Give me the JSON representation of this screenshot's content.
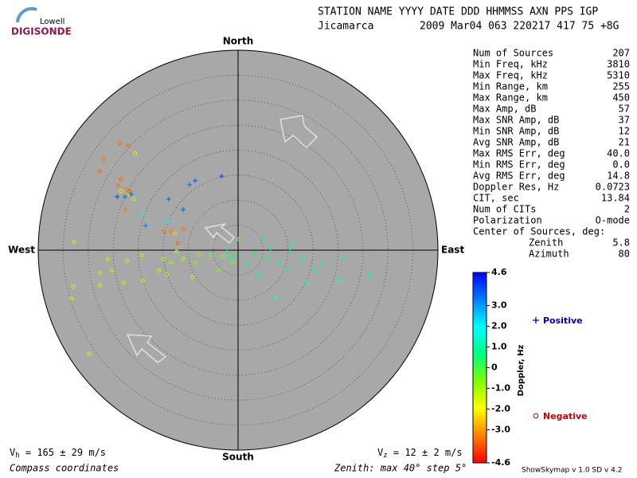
{
  "header": {
    "logo_top": "Lowell",
    "logo_bottom": "DIGISONDE",
    "columns": "STATION NAME    YYYY DATE  DDD HHMMSS AXN PPS IGP",
    "station": "Jicamarca",
    "values": "2009 Mar04 063 220217 417  75 +8G"
  },
  "stats": [
    {
      "label": "Num of Sources",
      "value": "207"
    },
    {
      "label": "Min Freq, kHz",
      "value": "3810"
    },
    {
      "label": "Max Freq, kHz",
      "value": "5310"
    },
    {
      "label": "Min Range, km",
      "value": "255"
    },
    {
      "label": "Max Range, km",
      "value": "450"
    },
    {
      "label": "Max Amp, dB",
      "value": "57"
    },
    {
      "label": "Max SNR Amp, dB",
      "value": "37"
    },
    {
      "label": "Min SNR Amp, dB",
      "value": "12"
    },
    {
      "label": "Avg SNR Amp, dB",
      "value": "21"
    },
    {
      "label": "Max RMS Err, deg",
      "value": "40.0"
    },
    {
      "label": "Min RMS Err, deg",
      "value": "0.0"
    },
    {
      "label": "Avg RMS Err, deg",
      "value": "14.8"
    },
    {
      "label": "Doppler Res, Hz",
      "value": "0.0723"
    },
    {
      "label": "CIT, sec",
      "value": "13.84"
    },
    {
      "label": "Num of CITs",
      "value": "2"
    },
    {
      "label": "Polarization",
      "value": "O-mode"
    }
  ],
  "center": {
    "title": "Center of Sources, deg:",
    "rows": [
      {
        "label": "Zenith",
        "value": "5.8"
      },
      {
        "label": "Azimuth",
        "value": "80"
      }
    ]
  },
  "chart_data": {
    "type": "skymap",
    "directions": {
      "north": "North",
      "south": "South",
      "east": "East",
      "west": "West"
    },
    "zenith_max": 40,
    "zenith_step": 5,
    "colorbar": {
      "title": "Doppler, Hz",
      "lim": [
        -4.6,
        4.6
      ],
      "ticks": [
        4.6,
        {
          "value": 3,
          "label": "3.0"
        },
        {
          "value": 2,
          "label": "2.0"
        },
        {
          "value": 1,
          "label": "1.0"
        },
        0,
        {
          "value": -1,
          "label": "-1.0"
        },
        {
          "value": -2,
          "label": "-2.0"
        },
        {
          "value": -3,
          "label": "-3.0"
        },
        -4.6
      ],
      "colors": [
        "#ff0000",
        "#ff8000",
        "#ffff00",
        "#80ff00",
        "#00ff80",
        "#00ffff",
        "#0080ff",
        "#0000ff"
      ]
    },
    "legend": {
      "positive": "Positive",
      "negative": "Negative",
      "positive_color": "#0000cc",
      "negative_color": "#cc0000"
    },
    "points": {
      "east": [
        -23.7,
        -22.0,
        -26.9,
        -27.7,
        -23.4,
        -22.2,
        -21.7,
        -22.6,
        -14.8,
        -13.5,
        -12.1,
        -11.0,
        -24.1,
        -22.2,
        -12.6,
        -23.4,
        -20.6,
        -20.9,
        -32.8,
        -33.3,
        -29.8,
        -33.0,
        -27.6,
        -27.7,
        -22.9,
        -19.0,
        -15.8,
        -9.1,
        -19.3,
        -26.1,
        -22.2,
        -15.0,
        -13.4,
        -11.0,
        -12.3,
        -25.3,
        -14.2,
        -7.8,
        -5.4,
        -3.0,
        -1.1,
        -8.6,
        0.2,
        -3.8,
        -3.3,
        -8.6,
        -9.7,
        -13.9,
        -18.5,
        -11.0,
        -22.6,
        -24.2,
        -21.4,
        -19.0,
        -14.2,
        20.9,
        16.9,
        12.9,
        26.3,
        20.1,
        13.7,
        7.5,
        10.7,
        15.3,
        3.3,
        5.7,
        8.1,
        4.1,
        9.7,
        1.8,
        4.9,
        10.4,
        -0.6,
        -1.4,
        -2.2,
        6.5
      ],
      "north": [
        21.4,
        20.9,
        18.2,
        15.8,
        14.2,
        12.1,
        11.8,
        8.1,
        3.8,
        3.8,
        1.4,
        4.3,
        12.9,
        11.0,
        3.3,
        11.8,
        19.4,
        10.2,
        1.6,
        -9.7,
        -20.7,
        -7.3,
        -4.6,
        -7.0,
        -6.5,
        -6.1,
        -4.1,
        -5.4,
        -1.0,
        -1.8,
        -2.2,
        -1.8,
        -2.5,
        -1.8,
        -0.3,
        -4.1,
        -4.9,
        -1.0,
        -1.0,
        -1.3,
        -2.5,
        -2.5,
        2.2,
        -4.1,
        14.8,
        13.9,
        13.1,
        10.2,
        4.9,
        8.1,
        10.7,
        10.7,
        11.2,
        7.3,
        5.7,
        -1.4,
        -2.5,
        -1.8,
        -4.9,
        -6.1,
        -6.5,
        -9.4,
        1.3,
        -4.1,
        -0.6,
        -1.8,
        -2.5,
        -4.9,
        -3.8,
        -2.5,
        2.2,
        -0.2,
        -1.0,
        -1.8,
        -0.2,
        0.3
      ],
      "doppler": [
        -3.6,
        -3.5,
        -3.4,
        -3.6,
        -3.5,
        -3.3,
        -3.7,
        -3.4,
        -3.5,
        -3.3,
        -3.6,
        -3.4,
        -3.5,
        -2.5,
        -2.6,
        -2.4,
        -1.3,
        -1.2,
        -1.1,
        -1.3,
        -1.2,
        -1.1,
        -1.0,
        -1.2,
        -1.1,
        -1.0,
        -1.2,
        -1.1,
        -1.0,
        -1.2,
        -1.1,
        -1.0,
        -0.9,
        -1.1,
        -1.0,
        -1.2,
        -0.9,
        -0.5,
        -0.4,
        -0.5,
        -0.3,
        -0.6,
        -0.4,
        -0.5,
        3.6,
        3.5,
        3.3,
        3.4,
        3.2,
        3.5,
        3.3,
        3.6,
        3.4,
        1.6,
        1.5,
        1.3,
        1.2,
        1.4,
        1.1,
        1.3,
        1.2,
        1.5,
        1.1,
        1.2,
        0.7,
        0.6,
        0.8,
        0.7,
        0.6,
        0.5,
        0.7,
        0.8,
        0.4,
        0.5,
        0.6,
        0.7
      ]
    },
    "vh": {
      "symbol": "V",
      "sub": "h",
      "text": " = 165 ± 29 m/s"
    },
    "vz": {
      "symbol": "V",
      "sub": "z",
      "text": " = 12 ± 2 m/s"
    }
  },
  "footer": {
    "coords": "Compass coordinates",
    "zenith": "Zenith: max 40°  step 5°",
    "version": "ShowSkymap v 1.0   SD v 4.2"
  }
}
